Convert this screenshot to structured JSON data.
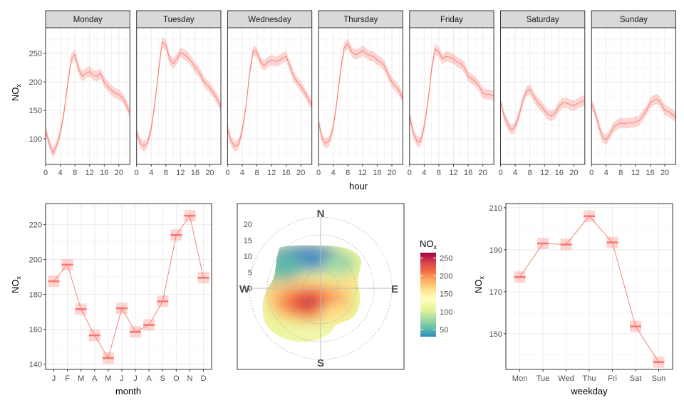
{
  "chart_data": [
    {
      "type": "line",
      "panel": "hour-by-weekday",
      "xlabel": "hour",
      "ylabel": "NO",
      "ylabel_sub": "x",
      "xlim": [
        0,
        23
      ],
      "ylim": [
        55,
        295
      ],
      "xticks": [
        0,
        4,
        8,
        12,
        16,
        20
      ],
      "yticks": [
        100,
        150,
        200,
        250
      ],
      "line_color": "#f8766d",
      "band_color": "#f8766d",
      "facets": [
        {
          "name": "Monday",
          "values": [
            115,
            92,
            75,
            88,
            110,
            145,
            195,
            240,
            248,
            222,
            210,
            215,
            218,
            212,
            210,
            215,
            200,
            192,
            185,
            180,
            178,
            172,
            160,
            145
          ]
        },
        {
          "name": "Tuesday",
          "values": [
            112,
            92,
            87,
            93,
            118,
            163,
            220,
            270,
            265,
            240,
            232,
            240,
            252,
            248,
            243,
            235,
            225,
            218,
            205,
            195,
            190,
            180,
            170,
            155
          ]
        },
        {
          "name": "Wednesday",
          "values": [
            118,
            95,
            87,
            90,
            115,
            155,
            215,
            255,
            252,
            235,
            228,
            235,
            238,
            236,
            237,
            242,
            245,
            228,
            210,
            200,
            192,
            182,
            170,
            160
          ]
        },
        {
          "name": "Thursday",
          "values": [
            130,
            100,
            92,
            97,
            120,
            165,
            220,
            260,
            267,
            253,
            248,
            250,
            255,
            250,
            246,
            245,
            238,
            235,
            228,
            212,
            200,
            192,
            185,
            170
          ]
        },
        {
          "name": "Friday",
          "values": [
            142,
            110,
            96,
            95,
            122,
            163,
            222,
            258,
            252,
            240,
            245,
            243,
            240,
            235,
            232,
            225,
            210,
            205,
            200,
            192,
            180,
            178,
            178,
            175
          ]
        },
        {
          "name": "Saturday",
          "values": [
            165,
            140,
            125,
            115,
            122,
            140,
            165,
            183,
            187,
            175,
            165,
            158,
            150,
            142,
            140,
            145,
            158,
            163,
            163,
            160,
            158,
            162,
            165,
            168
          ]
        },
        {
          "name": "Sunday",
          "values": [
            162,
            145,
            122,
            103,
            98,
            108,
            120,
            125,
            128,
            127,
            128,
            128,
            130,
            132,
            140,
            150,
            163,
            168,
            170,
            162,
            150,
            148,
            143,
            138
          ]
        }
      ]
    },
    {
      "type": "line",
      "panel": "month",
      "xlabel": "month",
      "ylabel": "NO",
      "ylabel_sub": "x",
      "categories": [
        "J",
        "F",
        "M",
        "A",
        "M",
        "J",
        "J",
        "A",
        "S",
        "O",
        "N",
        "D"
      ],
      "values": [
        187.5,
        197,
        171.5,
        156.5,
        143.5,
        172,
        158.5,
        162.5,
        176,
        214,
        225,
        189.5
      ],
      "ylim": [
        137,
        232
      ],
      "yticks": [
        140,
        160,
        180,
        200,
        220
      ],
      "line_color": "#f8766d"
    },
    {
      "type": "heatmap",
      "panel": "polar",
      "compass": [
        "N",
        "E",
        "S",
        "W"
      ],
      "radial_ticks": [
        0,
        5,
        10,
        15,
        20
      ],
      "legend_title": "NO",
      "legend_title_sub": "x",
      "legend_ticks": [
        50,
        100,
        150,
        200,
        250
      ],
      "legend_range": [
        30,
        265
      ],
      "colors": [
        "#3288bd",
        "#66c2a5",
        "#abdda4",
        "#e6f598",
        "#ffffbf",
        "#fee08b",
        "#fdae61",
        "#f46d43",
        "#d53e4f",
        "#9e0142"
      ]
    },
    {
      "type": "line",
      "panel": "weekday",
      "xlabel": "weekday",
      "ylabel": "NO",
      "ylabel_sub": "x",
      "categories": [
        "Mon",
        "Tue",
        "Wed",
        "Thu",
        "Fri",
        "Sat",
        "Sun"
      ],
      "values": [
        177,
        193,
        192.5,
        206,
        193.5,
        153.5,
        136.5
      ],
      "ylim": [
        133,
        212
      ],
      "yticks": [
        150,
        170,
        190,
        210
      ],
      "line_color": "#f8766d"
    }
  ]
}
